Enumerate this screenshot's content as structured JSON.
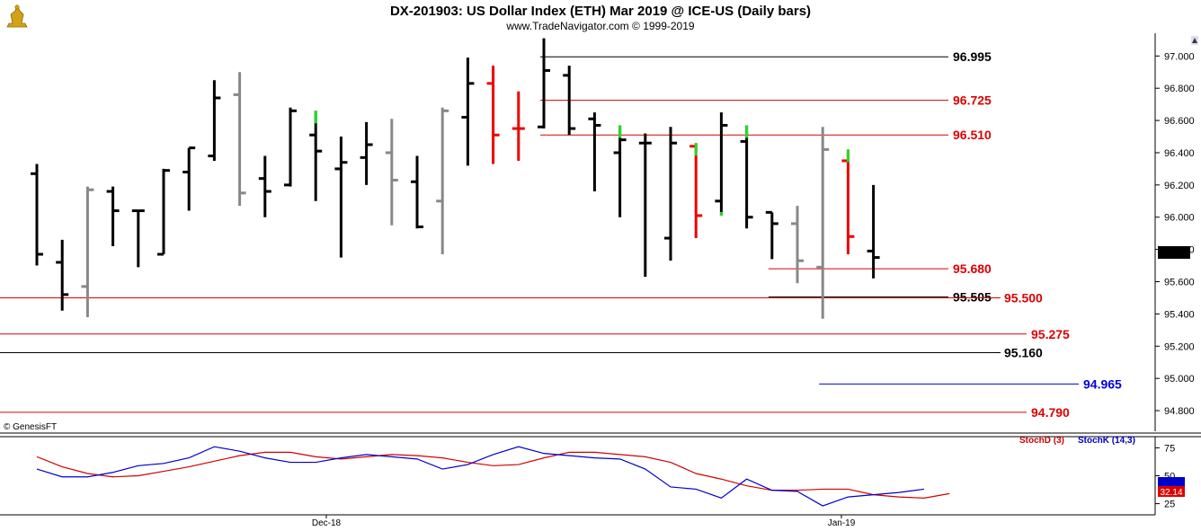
{
  "header": {
    "title": "DX-201903:  US Dollar Index (ETH) Mar 2019 @ ICE-US  (Daily bars)",
    "subtitle": "www.TradeNavigator.com © 1999-2019",
    "logo_icon": "gold-bull-icon"
  },
  "watermark": "© GenesisFT",
  "colors": {
    "up_bar": "#000000",
    "down_bar": "#888888",
    "red_bar": "#ee0000",
    "green_tick": "#22dd22",
    "stoch_d": "#d00000",
    "stoch_k": "#0000cc",
    "level_red": "#dd0000",
    "level_blue": "#0000dd"
  },
  "chart_data": {
    "type": "ohlc",
    "instrument": "DX-201903",
    "x_ticks": [
      "Dec-18",
      "Jan-19"
    ],
    "price_axis": {
      "ticks": [
        "97.000",
        "96.800",
        "96.600",
        "96.400",
        "96.200",
        "96.000",
        "95.800",
        "95.600",
        "95.400",
        "95.200",
        "95.000",
        "94.800"
      ],
      "ylim": [
        94.75,
        97.13
      ],
      "last_price": "95.750"
    },
    "levels": [
      {
        "label": "96.995",
        "value": 96.995,
        "color": "black",
        "from_bar": 20
      },
      {
        "label": "96.725",
        "value": 96.725,
        "color": "red",
        "from_bar": 20
      },
      {
        "label": "96.510",
        "value": 96.51,
        "color": "red",
        "from_bar": 20
      },
      {
        "label": "95.680",
        "value": 95.68,
        "color": "red",
        "from_bar": 29
      },
      {
        "label": "95.505",
        "value": 95.505,
        "color": "black",
        "from_bar": 29
      },
      {
        "label": "95.500",
        "value": 95.5,
        "color": "red",
        "from_bar": 0
      },
      {
        "label": "95.275",
        "value": 95.275,
        "color": "red",
        "from_bar": 0
      },
      {
        "label": "95.160",
        "value": 95.16,
        "color": "black",
        "from_bar": 0
      },
      {
        "label": "94.965",
        "value": 94.965,
        "color": "blue",
        "from_bar": 31
      },
      {
        "label": "94.790",
        "value": 94.79,
        "color": "red",
        "from_bar": 0
      }
    ],
    "bars": [
      {
        "o": 96.27,
        "h": 96.33,
        "l": 95.7,
        "c": 95.77,
        "k": "black"
      },
      {
        "o": 95.72,
        "h": 95.86,
        "l": 95.42,
        "c": 95.52,
        "k": "black"
      },
      {
        "o": 95.57,
        "h": 96.19,
        "l": 95.38,
        "c": 96.17,
        "k": "gray"
      },
      {
        "o": 96.16,
        "h": 96.19,
        "l": 95.82,
        "c": 96.04,
        "k": "black"
      },
      {
        "o": 96.04,
        "h": 96.04,
        "l": 95.69,
        "c": 96.04,
        "k": "black"
      },
      {
        "o": 95.77,
        "h": 96.3,
        "l": 95.77,
        "c": 96.29,
        "k": "black"
      },
      {
        "o": 96.28,
        "h": 96.43,
        "l": 96.04,
        "c": 96.43,
        "k": "black"
      },
      {
        "o": 96.38,
        "h": 96.85,
        "l": 96.35,
        "c": 96.74,
        "k": "black"
      },
      {
        "o": 96.76,
        "h": 96.9,
        "l": 96.07,
        "c": 96.15,
        "k": "gray"
      },
      {
        "o": 96.24,
        "h": 96.38,
        "l": 96.0,
        "c": 96.16,
        "k": "black"
      },
      {
        "o": 96.2,
        "h": 96.68,
        "l": 96.19,
        "c": 96.66,
        "k": "black"
      },
      {
        "o": 96.51,
        "h": 96.66,
        "l": 96.1,
        "c": 96.41,
        "k": "black",
        "hi": "green"
      },
      {
        "o": 96.3,
        "h": 96.5,
        "l": 95.75,
        "c": 96.34,
        "k": "black"
      },
      {
        "o": 96.37,
        "h": 96.59,
        "l": 96.2,
        "c": 96.45,
        "k": "black"
      },
      {
        "o": 96.4,
        "h": 96.61,
        "l": 95.95,
        "c": 96.23,
        "k": "gray"
      },
      {
        "o": 96.22,
        "h": 96.38,
        "l": 95.93,
        "c": 95.94,
        "k": "black"
      },
      {
        "o": 96.1,
        "h": 96.68,
        "l": 95.77,
        "c": 96.66,
        "k": "gray"
      },
      {
        "o": 96.62,
        "h": 96.99,
        "l": 96.32,
        "c": 96.83,
        "k": "black"
      },
      {
        "o": 96.83,
        "h": 96.94,
        "l": 96.33,
        "c": 96.51,
        "k": "red"
      },
      {
        "o": 96.55,
        "h": 96.78,
        "l": 96.35,
        "c": 96.55,
        "k": "red"
      },
      {
        "o": 96.56,
        "h": 97.11,
        "l": 96.55,
        "c": 96.91,
        "k": "black"
      },
      {
        "o": 96.88,
        "h": 96.94,
        "l": 96.51,
        "c": 96.55,
        "k": "black"
      },
      {
        "o": 96.61,
        "h": 96.65,
        "l": 96.16,
        "c": 96.57,
        "k": "black"
      },
      {
        "o": 96.4,
        "h": 96.57,
        "l": 96.0,
        "c": 96.48,
        "k": "black",
        "hi": "green"
      },
      {
        "o": 96.46,
        "h": 96.52,
        "l": 95.63,
        "c": 96.46,
        "k": "black"
      },
      {
        "o": 95.87,
        "h": 96.56,
        "l": 95.73,
        "c": 96.46,
        "k": "black"
      },
      {
        "o": 96.44,
        "h": 96.46,
        "l": 95.87,
        "c": 96.01,
        "k": "red",
        "hi": "green"
      },
      {
        "o": 96.1,
        "h": 96.65,
        "l": 96.01,
        "c": 96.57,
        "k": "black",
        "lo": "green"
      },
      {
        "o": 96.47,
        "h": 96.57,
        "l": 95.93,
        "c": 96.0,
        "k": "black",
        "hi": "green"
      },
      {
        "o": 96.03,
        "h": 96.03,
        "l": 95.74,
        "c": 95.96,
        "k": "black"
      },
      {
        "o": 95.96,
        "h": 96.07,
        "l": 95.59,
        "c": 95.73,
        "k": "gray"
      },
      {
        "o": 95.69,
        "h": 96.56,
        "l": 95.37,
        "c": 96.42,
        "k": "gray"
      },
      {
        "o": 96.35,
        "h": 96.42,
        "l": 95.77,
        "c": 95.88,
        "k": "red",
        "hi": "green"
      },
      {
        "o": 95.79,
        "h": 96.2,
        "l": 95.62,
        "c": 95.75,
        "k": "black"
      }
    ],
    "stochastic": {
      "d_label": "StochD (3)",
      "k_label": "StochK (14,3)",
      "ticks": [
        "75",
        "50",
        "25"
      ],
      "ylim": [
        15,
        85
      ],
      "last_value": "32.14",
      "stoch_d": [
        67,
        58,
        52,
        49,
        50,
        54,
        58,
        63,
        68,
        71,
        71,
        67,
        65,
        67,
        69,
        68,
        66,
        62,
        59,
        60,
        66,
        71,
        71,
        69,
        67,
        62,
        52,
        47,
        41,
        37,
        37,
        38,
        38,
        33,
        31,
        30,
        34
      ],
      "stoch_k": [
        56,
        49,
        49,
        53,
        59,
        61,
        66,
        76,
        72,
        66,
        62,
        62,
        66,
        69,
        67,
        65,
        56,
        60,
        69,
        76,
        70,
        68,
        66,
        65,
        56,
        40,
        38,
        30,
        47,
        37,
        36,
        23,
        31,
        33,
        35,
        38
      ]
    }
  }
}
